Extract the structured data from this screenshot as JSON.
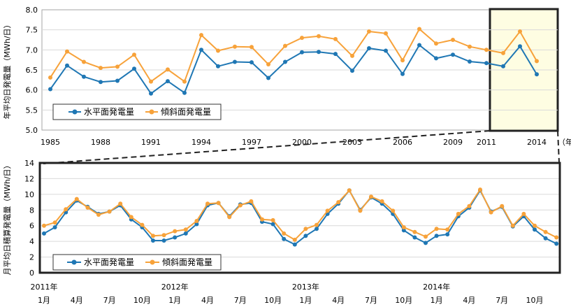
{
  "colors": {
    "horizontal": "#1f77b4",
    "tilted": "#f7a23a",
    "highlight_fill": "#fefde2",
    "frame": "#222222",
    "axis": "#a6a6a6"
  },
  "chart_data": [
    {
      "type": "line",
      "ylabel": "年平均日発電量（MWh/日）",
      "x_unit_label": "（年）",
      "ylim": [
        5.0,
        8.0
      ],
      "y_ticks": [
        "5.0",
        "5.5",
        "6.0",
        "6.5",
        "7.0",
        "7.5",
        "8.0"
      ],
      "x_tick_labels": [
        "1985",
        "1988",
        "1991",
        "1994",
        "1997",
        "2000",
        "2003",
        "2006",
        "2009",
        "2011",
        "2014"
      ],
      "x": [
        1985,
        1986,
        1987,
        1988,
        1989,
        1990,
        1991,
        1992,
        1993,
        1994,
        1995,
        1996,
        1997,
        1998,
        1999,
        2000,
        2001,
        2002,
        2003,
        2004,
        2005,
        2006,
        2007,
        2008,
        2009,
        2010,
        2011,
        2012,
        2013,
        2014
      ],
      "series": [
        {
          "name": "水平面発電量",
          "color_key": "horizontal",
          "values": [
            6.02,
            6.61,
            6.33,
            6.2,
            6.23,
            6.53,
            5.91,
            6.22,
            5.93,
            7.0,
            6.59,
            6.7,
            6.69,
            6.3,
            6.7,
            6.94,
            6.95,
            6.9,
            6.48,
            7.04,
            6.98,
            6.4,
            7.12,
            6.79,
            6.88,
            6.71,
            6.67,
            6.59,
            7.09,
            6.39
          ]
        },
        {
          "name": "傾斜面発電量",
          "color_key": "tilted",
          "values": [
            6.31,
            6.96,
            6.7,
            6.55,
            6.58,
            6.88,
            6.21,
            6.51,
            6.21,
            7.37,
            6.98,
            7.08,
            7.07,
            6.64,
            7.1,
            7.3,
            7.34,
            7.27,
            6.85,
            7.46,
            7.41,
            6.74,
            7.52,
            7.16,
            7.25,
            7.08,
            7.0,
            6.92,
            7.46,
            6.72
          ]
        }
      ],
      "legend": "bottom-left"
    },
    {
      "type": "line",
      "ylabel": "月平均日積算発電量（MWh/日）",
      "ylim": [
        0,
        14
      ],
      "y_ticks": [
        "0",
        "2",
        "4",
        "6",
        "8",
        "10",
        "12",
        "14"
      ],
      "x_month_labels": [
        "1月",
        "4月",
        "7月",
        "10月",
        "1月",
        "4月",
        "7月",
        "10月",
        "1月",
        "4月",
        "7月",
        "10月",
        "1月",
        "4月",
        "7月",
        "10月"
      ],
      "x_year_labels": [
        "2011年",
        "2012年",
        "2013年",
        "2014年"
      ],
      "series": [
        {
          "name": "水平面発電量",
          "color_key": "horizontal",
          "values": [
            5.0,
            5.8,
            7.7,
            9.2,
            8.4,
            7.5,
            7.8,
            8.6,
            6.8,
            5.8,
            4.1,
            4.1,
            4.5,
            5.0,
            6.2,
            8.6,
            8.9,
            7.2,
            8.7,
            8.9,
            6.5,
            6.2,
            4.3,
            3.6,
            4.7,
            5.6,
            7.5,
            8.8,
            10.5,
            8.0,
            9.6,
            8.8,
            7.5,
            5.4,
            4.5,
            3.8,
            4.7,
            4.9,
            7.2,
            8.3,
            10.5,
            7.8,
            8.4,
            5.9,
            7.2,
            5.5,
            4.4,
            3.7
          ]
        },
        {
          "name": "傾斜面発電量",
          "color_key": "tilted",
          "values": [
            6.0,
            6.4,
            8.1,
            9.4,
            8.3,
            7.4,
            7.8,
            8.8,
            7.1,
            6.1,
            4.7,
            4.8,
            5.3,
            5.5,
            6.6,
            8.8,
            8.9,
            7.1,
            8.6,
            9.1,
            6.8,
            6.7,
            5.0,
            4.2,
            5.6,
            6.1,
            7.9,
            9.0,
            10.5,
            7.9,
            9.7,
            9.1,
            7.9,
            5.8,
            5.2,
            4.6,
            5.6,
            5.5,
            7.5,
            8.5,
            10.6,
            7.7,
            8.5,
            6.0,
            7.5,
            6.0,
            5.2,
            4.5
          ]
        }
      ],
      "legend": "bottom-left"
    }
  ]
}
